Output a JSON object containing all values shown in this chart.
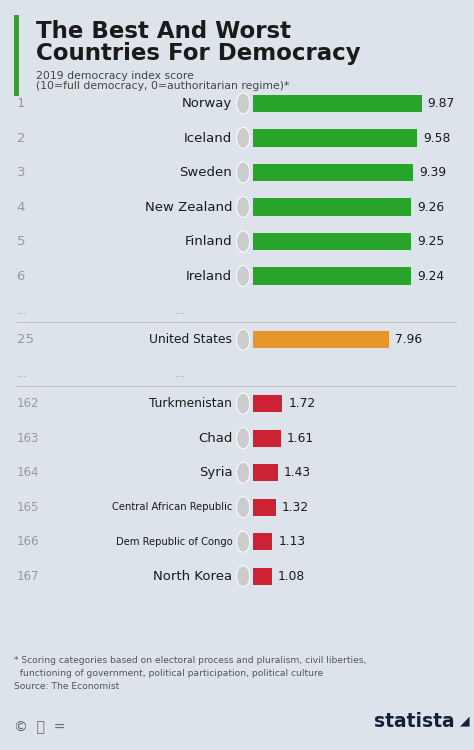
{
  "title_line1": "The Best And Worst",
  "title_line2": "Countries For Democracy",
  "subtitle_line1": "2019 democracy index score",
  "subtitle_line2": "(10=full democracy, 0=authoritarian regime)*",
  "footnote_line1": "* Scoring categories based on electoral process and pluralism, civil liberties,",
  "footnote_line2": "  functioning of government, political participation, political culture",
  "footnote_line3": "Source: The Economist",
  "background_color": "#dde3ea",
  "title_accent_color": "#3d9b3d",
  "text_color": "#1a1a1a",
  "rank_color": "#999999",
  "dot_color": "#bbbbbb",
  "entries": [
    {
      "rank": "1",
      "country": "Norway",
      "value": 9.87,
      "bar_color": "#28a428"
    },
    {
      "rank": "2",
      "country": "Iceland",
      "value": 9.58,
      "bar_color": "#28a428"
    },
    {
      "rank": "3",
      "country": "Sweden",
      "value": 9.39,
      "bar_color": "#28a428"
    },
    {
      "rank": "4",
      "country": "New Zealand",
      "value": 9.26,
      "bar_color": "#28a428"
    },
    {
      "rank": "5",
      "country": "Finland",
      "value": 9.25,
      "bar_color": "#28a428"
    },
    {
      "rank": "6",
      "country": "Ireland",
      "value": 9.24,
      "bar_color": "#28a428"
    },
    {
      "rank": "...",
      "country": "...",
      "value": null,
      "bar_color": null
    },
    {
      "rank": "25",
      "country": "United States",
      "value": 7.96,
      "bar_color": "#e8952a"
    },
    {
      "rank": "...",
      "country": "...",
      "value": null,
      "bar_color": null
    },
    {
      "rank": "162",
      "country": "Turkmenistan",
      "value": 1.72,
      "bar_color": "#cc2233"
    },
    {
      "rank": "163",
      "country": "Chad",
      "value": 1.61,
      "bar_color": "#cc2233"
    },
    {
      "rank": "164",
      "country": "Syria",
      "value": 1.43,
      "bar_color": "#cc2233"
    },
    {
      "rank": "165",
      "country": "Central African Republic",
      "value": 1.32,
      "bar_color": "#cc2233"
    },
    {
      "rank": "166",
      "country": "Dem Republic of Congo",
      "value": 1.13,
      "bar_color": "#cc2233"
    },
    {
      "rank": "167",
      "country": "North Korea",
      "value": 1.08,
      "bar_color": "#cc2233"
    }
  ]
}
